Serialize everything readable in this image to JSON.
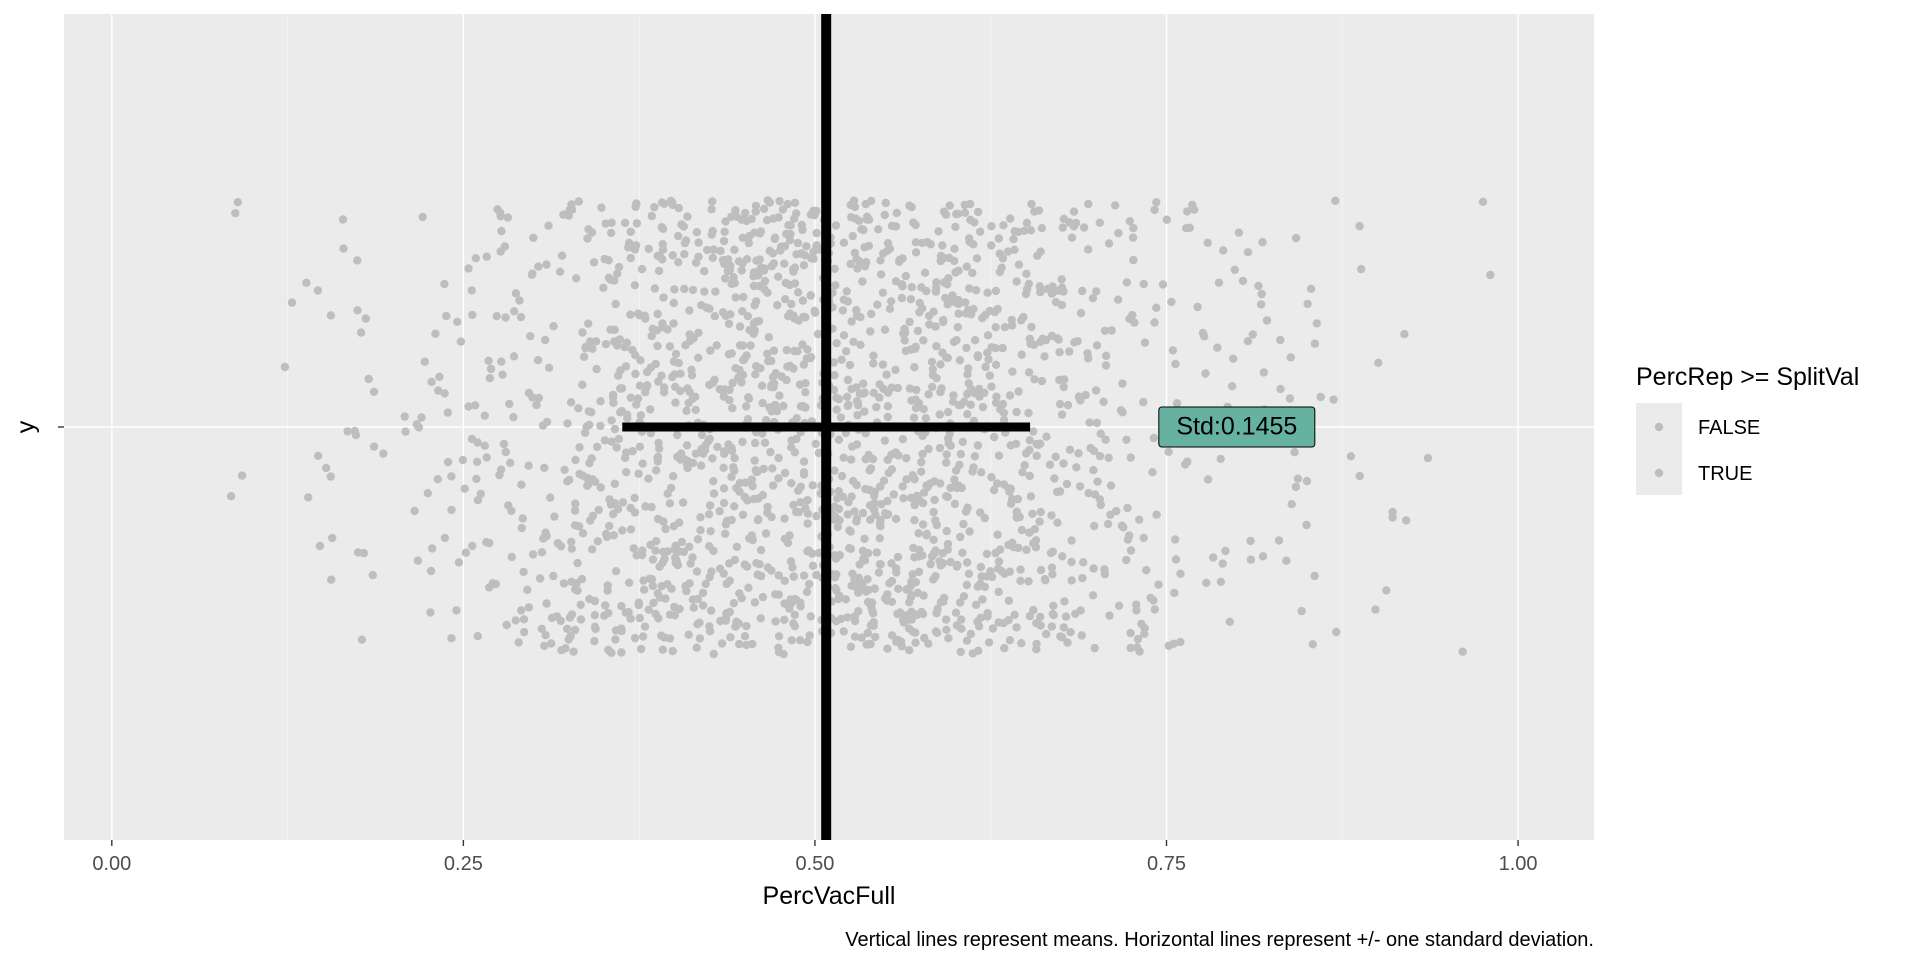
{
  "chart_data": {
    "type": "scatter",
    "xlabel": "PercVacFull",
    "ylabel": "y",
    "xlim": [
      -0.034,
      1.054
    ],
    "x_ticks": [
      0.0,
      0.25,
      0.5,
      0.75,
      1.0
    ],
    "x_tick_labels": [
      "0.00",
      "0.25",
      "0.50",
      "0.75",
      "1.00"
    ],
    "y_tick_labels": [
      ""
    ],
    "grid": true,
    "legend": {
      "title": "PercRep >= SplitVal",
      "position": "right",
      "entries": [
        {
          "label": "FALSE",
          "color": "#bebebe"
        },
        {
          "label": "TRUE",
          "color": "#bebebe"
        }
      ]
    },
    "point_color": "#bebebe",
    "jitter_range_y": [
      -0.33,
      0.33
    ],
    "approx_point_count": 2000,
    "mean": 0.508,
    "std": 0.1455,
    "mean_line": {
      "x": 0.508,
      "color": "#000000"
    },
    "std_line": {
      "x_from": 0.363,
      "x_to": 0.653,
      "y": 0,
      "color": "#000000"
    },
    "annotation": {
      "text": "Std:0.1455",
      "x": 0.8,
      "y": 0,
      "fill": "#66b2a0"
    },
    "caption": "Vertical lines represent means. Horizontal lines represent +/- one standard deviation."
  },
  "colors": {
    "panel_background": "#ebebeb",
    "grid_major": "#ffffff",
    "axis_text": "#4d4d4d",
    "title_text": "#000000"
  }
}
